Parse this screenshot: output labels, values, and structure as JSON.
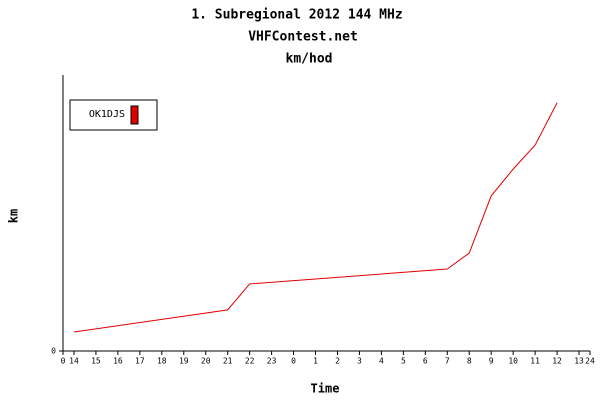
{
  "chart_data": {
    "type": "line",
    "title": "1. Subregional 2012 144 MHz",
    "subtitle": "VHFContest.net",
    "subtitle2": "km/hod",
    "x_label": "Time",
    "y_label": "km",
    "x": [
      0.5,
      7.5,
      8.5,
      17.5,
      18.5,
      19.5,
      20.5,
      21.5,
      22.5
    ],
    "series": [
      {
        "name": "OK1DJS",
        "color": "#e00000",
        "values": [
          6.9,
          14.9,
          24.3,
          29.7,
          35.5,
          56.2,
          65.9,
          74.6,
          89.9
        ]
      }
    ],
    "xlim": [
      0,
      24
    ],
    "xticks": [
      0,
      {
        "value": 0.5,
        "label": "14"
      },
      {
        "value": 1.5,
        "label": "15"
      },
      {
        "value": 2.5,
        "label": "16"
      },
      {
        "value": 3.5,
        "label": "17"
      },
      {
        "value": 4.5,
        "label": "18"
      },
      {
        "value": 5.5,
        "label": "19"
      },
      {
        "value": 6.5,
        "label": "20"
      },
      {
        "value": 7.5,
        "label": "21"
      },
      {
        "value": 8.5,
        "label": "22"
      },
      {
        "value": 9.5,
        "label": "23"
      },
      {
        "value": 10.5,
        "label": "0"
      },
      {
        "value": 11.5,
        "label": "1"
      },
      {
        "value": 12.5,
        "label": "2"
      },
      {
        "value": 13.5,
        "label": "3"
      },
      {
        "value": 14.5,
        "label": "4"
      },
      {
        "value": 15.5,
        "label": "5"
      },
      {
        "value": 16.5,
        "label": "6"
      },
      {
        "value": 17.5,
        "label": "7"
      },
      {
        "value": 18.5,
        "label": "8"
      },
      {
        "value": 19.5,
        "label": "9"
      },
      {
        "value": 20.5,
        "label": "10"
      },
      {
        "value": 21.5,
        "label": "11"
      },
      {
        "value": 22.5,
        "label": "12"
      },
      {
        "value": 23.5,
        "label": "13"
      },
      24
    ],
    "ylim": [
      0,
      100
    ],
    "yticks": [
      0
    ],
    "legend": "top-left"
  }
}
